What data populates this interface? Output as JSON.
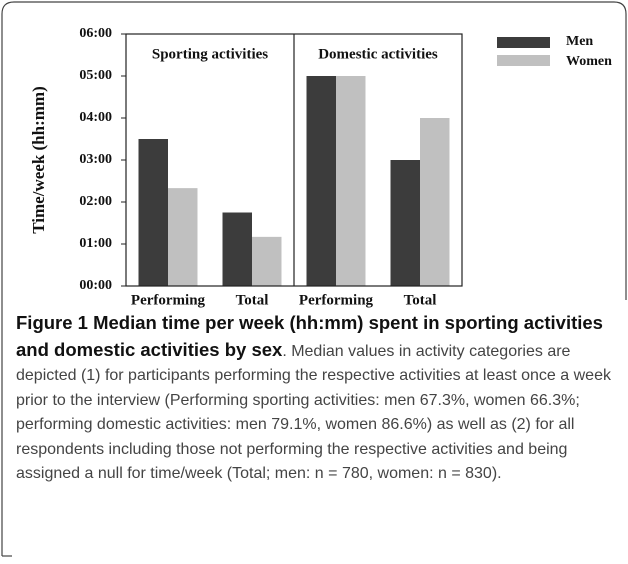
{
  "chart_data": {
    "type": "bar",
    "ylabel": "Time/week (hh:mm)",
    "panels": [
      "Sporting activities",
      "Domestic activities"
    ],
    "categories": [
      "Performing",
      "Total",
      "Performing",
      "Total"
    ],
    "series": [
      {
        "name": "Men",
        "color": "#3c3c3c",
        "values": [
          3.5,
          1.75,
          5,
          3
        ]
      },
      {
        "name": "Women",
        "color": "#c0c0c0",
        "values": [
          2.33,
          1.17,
          5,
          4
        ]
      }
    ],
    "ylim": [
      0,
      6
    ],
    "yticks": [
      {
        "value": 0,
        "label": "00:00"
      },
      {
        "value": 1,
        "label": "01:00"
      },
      {
        "value": 2,
        "label": "02:00"
      },
      {
        "value": 3,
        "label": "03:00"
      },
      {
        "value": 4,
        "label": "04:00"
      },
      {
        "value": 5,
        "label": "05:00"
      },
      {
        "value": 6,
        "label": "06:00"
      }
    ],
    "legend": "right"
  },
  "caption": {
    "title": "Figure 1 Median time per week (hh:mm) spent in sporting activities and domestic activities by sex",
    "text": ". Median values in activity categories are depicted (1) for participants performing the respective activities at least once a week prior to the interview (Performing sporting activities: men 67.3%, women 66.3%; performing domestic activities: men 79.1%, women 86.6%) as well as (2) for all respondents including those not performing the respective activities and being assigned a null for time/week (Total; men: n = 780, women: n = 830)."
  }
}
